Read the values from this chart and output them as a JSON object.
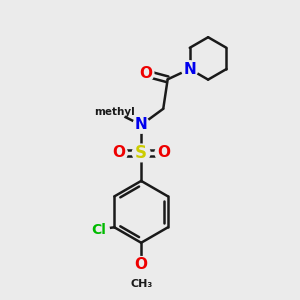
{
  "background_color": "#ebebeb",
  "atom_colors": {
    "C": "#1a1a1a",
    "N": "#0000ee",
    "O": "#ee0000",
    "S": "#cccc00",
    "Cl": "#00bb00",
    "H": "#1a1a1a"
  },
  "bond_color": "#1a1a1a",
  "bond_width": 1.8,
  "figsize": [
    3.0,
    3.0
  ],
  "dpi": 100,
  "xlim": [
    0,
    10
  ],
  "ylim": [
    0,
    10
  ]
}
